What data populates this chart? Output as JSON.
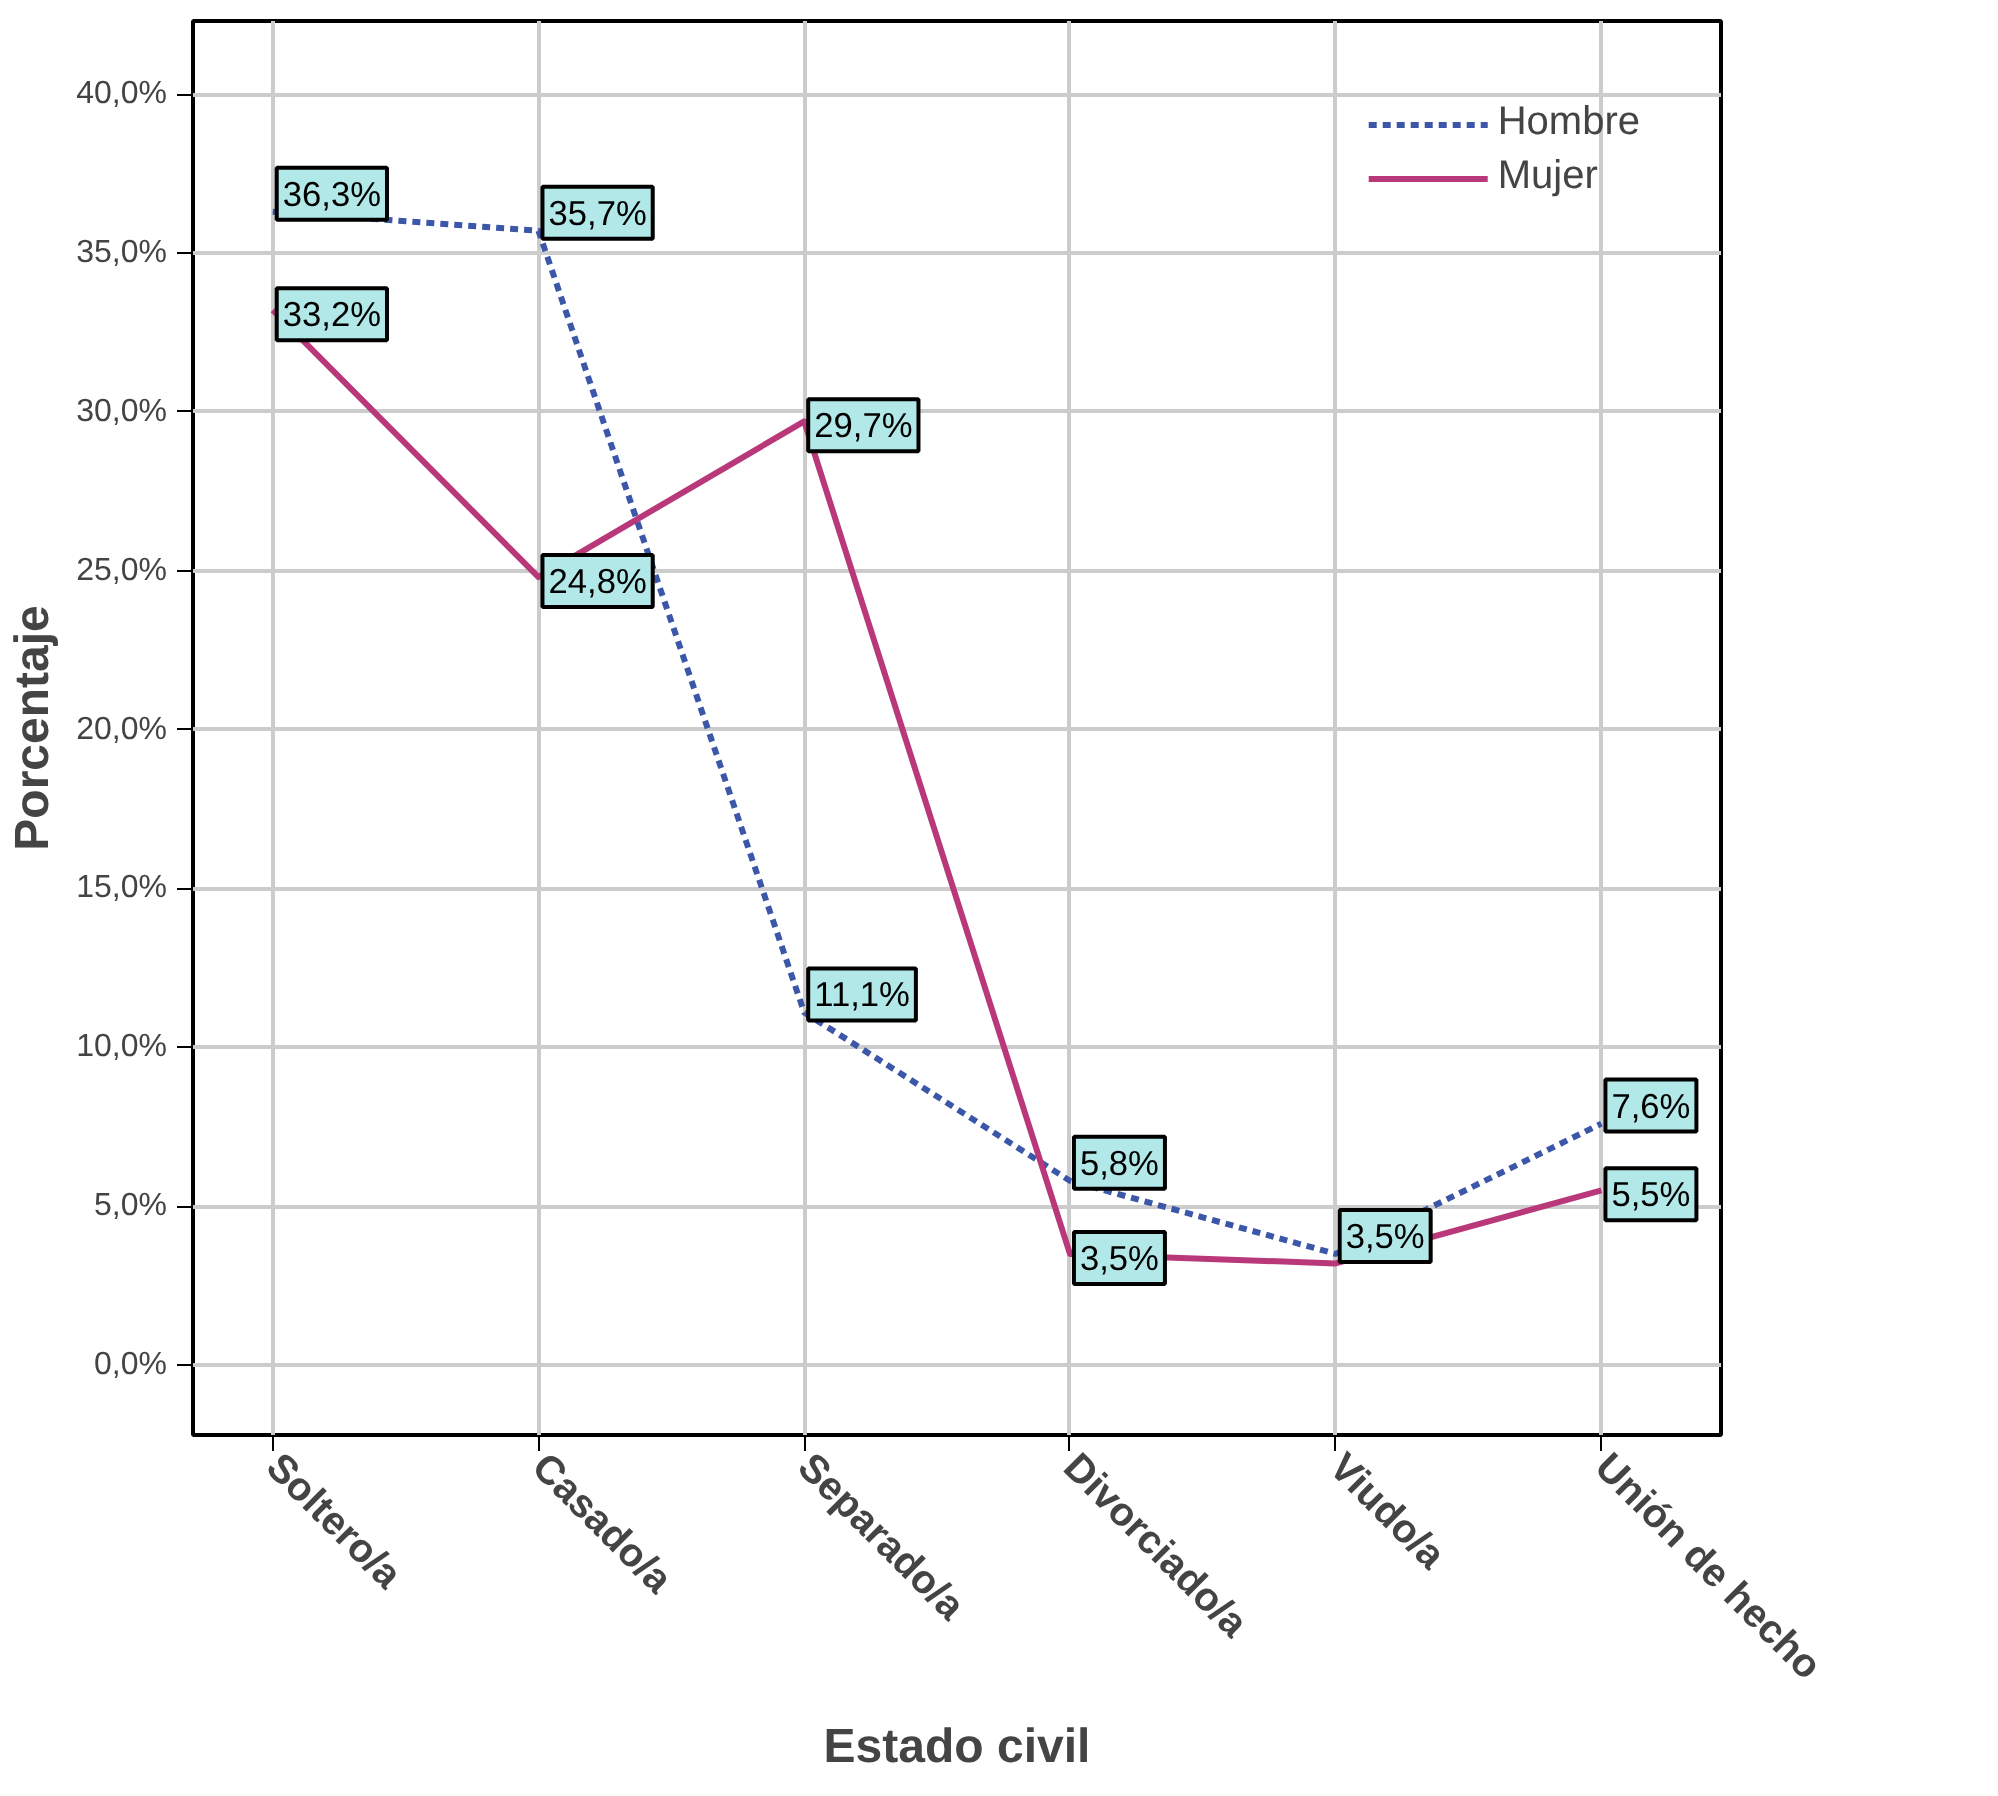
{
  "chart_data": {
    "type": "line",
    "xlabel": "Estado civil",
    "ylabel": "Porcentaje",
    "categories": [
      "Soltero/a",
      "Casado/a",
      "Separado/a",
      "Divorciado/a",
      "Viudo/a",
      "Unión de hecho"
    ],
    "series": [
      {
        "name": "Hombre",
        "color": "#3c56a8",
        "line_style": "dashed",
        "values": [
          36.3,
          35.7,
          11.1,
          5.8,
          3.5,
          7.6
        ],
        "value_labels": [
          "36,3%",
          "35,7%",
          "11,1%",
          "5,8%",
          "3,5%",
          "7,6%"
        ]
      },
      {
        "name": "Mujer",
        "color": "#b8387a",
        "line_style": "solid",
        "values": [
          33.2,
          24.8,
          29.7,
          3.5,
          3.2,
          5.5
        ],
        "value_labels": [
          "33,2%",
          "24,8%",
          "29,7%",
          "3,5%",
          null,
          "5,5%"
        ]
      }
    ],
    "ylim": [
      -2.2,
      42.3
    ],
    "yticks": [
      {
        "value": 0,
        "label": "0,0%"
      },
      {
        "value": 5,
        "label": "5,0%"
      },
      {
        "value": 10,
        "label": "10,0%"
      },
      {
        "value": 15,
        "label": "15,0%"
      },
      {
        "value": 20,
        "label": "20,0%"
      },
      {
        "value": 25,
        "label": "25,0%"
      },
      {
        "value": 30,
        "label": "30,0%"
      },
      {
        "value": 35,
        "label": "35,0%"
      },
      {
        "value": 40,
        "label": "40,0%"
      }
    ],
    "grid": true,
    "legend": "top right",
    "marker": "none"
  }
}
